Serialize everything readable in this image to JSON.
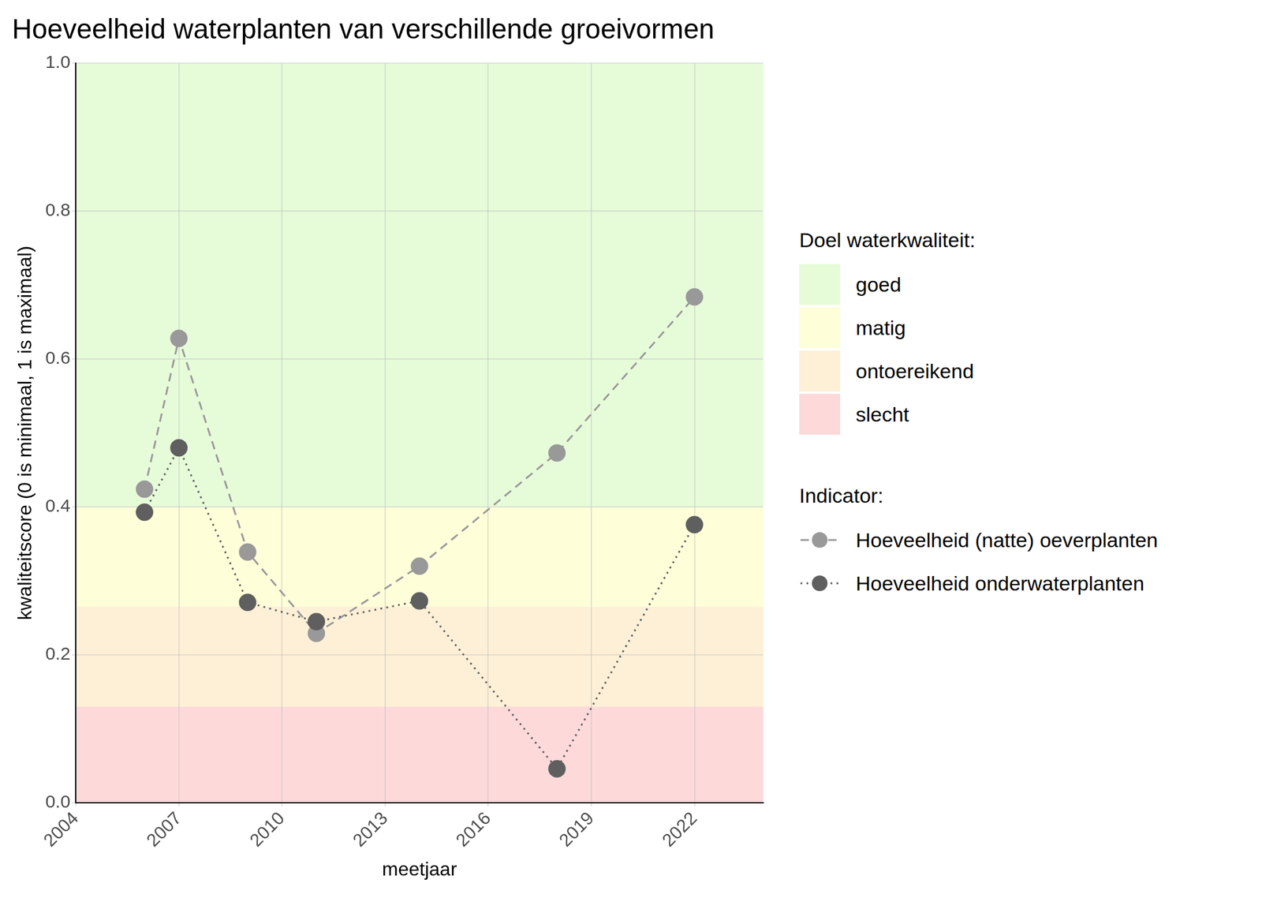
{
  "chart_data": {
    "type": "line",
    "title": "Hoeveelheid waterplanten van verschillende groeivormen",
    "x_label": "meetjaar",
    "y_label": "kwaliteitscore (0 is minimaal, 1 is maximaal)",
    "x": [
      2006,
      2007,
      2009,
      2011,
      2014,
      2018,
      2022
    ],
    "series": [
      {
        "name": "Hoeveelheid (natte) oeverplanten",
        "color": "#999999",
        "marker": "circle",
        "line_style": "dashed",
        "values": [
          0.424,
          0.628,
          0.339,
          0.229,
          0.32,
          0.473,
          0.684
        ]
      },
      {
        "name": "Hoeveelheid onderwaterplanten",
        "color": "#5f5f5f",
        "marker": "circle",
        "line_style": "dotted",
        "values": [
          0.393,
          0.48,
          0.271,
          0.245,
          0.273,
          0.046,
          0.376
        ]
      }
    ],
    "xlim": [
      2004,
      2024
    ],
    "xticks": [
      2004,
      2007,
      2010,
      2013,
      2016,
      2019,
      2022
    ],
    "ylim": [
      0,
      1
    ],
    "yticks": [
      {
        "value": 0,
        "label": "0.0"
      },
      0.2,
      0.4,
      0.6,
      0.8,
      {
        "value": 1,
        "label": "1.0"
      }
    ],
    "grid": true,
    "legend": "right",
    "legend_title": "Indicator:",
    "bands_title": "Doel waterkwaliteit:",
    "bands": [
      {
        "name": "goed",
        "color": "#e6fcd9",
        "from": 0.4,
        "to": 1.0
      },
      {
        "name": "matig",
        "color": "#fefed9",
        "from": 0.265,
        "to": 0.4
      },
      {
        "name": "ontoereikend",
        "color": "#fdf0d6",
        "from": 0.13,
        "to": 0.265
      },
      {
        "name": "slecht",
        "color": "#fdd9da",
        "from": 0,
        "to": 0.13
      }
    ]
  }
}
